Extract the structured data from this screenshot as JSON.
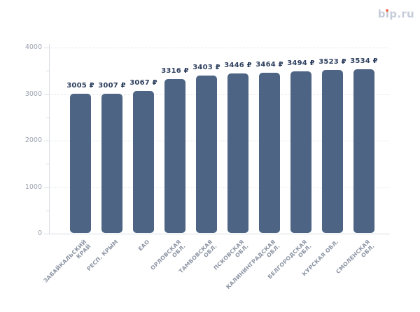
{
  "page": {
    "background": "#ffffff"
  },
  "logo": {
    "text": "bip.ru",
    "text_color": "#c7ccdb",
    "i_dot_color": "#f0715c"
  },
  "chart_data": {
    "type": "bar",
    "title": "",
    "xlabel": "",
    "ylabel": "",
    "currency_suffix": "₽",
    "categories": [
      {
        "label": "ЗАБАЙКАЛЬСКИЙ КРАЙ",
        "lines": [
          "ЗАБАЙКАЛЬСКИЙ",
          "КРАЙ"
        ]
      },
      {
        "label": "РЕСП. КРЫМ",
        "lines": [
          "РЕСП. КРЫМ"
        ]
      },
      {
        "label": "ЕАО",
        "lines": [
          "ЕАО"
        ]
      },
      {
        "label": "ОРЛОВСКАЯ ОБЛ.",
        "lines": [
          "ОРЛОВСКАЯ",
          "ОБЛ."
        ]
      },
      {
        "label": "ТАМБОВСКАЯ ОБЛ.",
        "lines": [
          "ТАМБОВСКАЯ",
          "ОБЛ."
        ]
      },
      {
        "label": "ПСКОВСКАЯ ОБЛ.",
        "lines": [
          "ПСКОВСКАЯ",
          "ОБЛ."
        ]
      },
      {
        "label": "КАЛИНИНГРАДСКАЯ ОБЛ.",
        "lines": [
          "КАЛИНИНГРАДСКАЯ",
          "ОБЛ."
        ]
      },
      {
        "label": "БЕЛГОРОДСКАЯ ОБЛ.",
        "lines": [
          "БЕЛГОРОДСКАЯ",
          "ОБЛ."
        ]
      },
      {
        "label": "КУРСКАЯ ОБЛ.",
        "lines": [
          "КУРСКАЯ ОБЛ."
        ]
      },
      {
        "label": "СМОЛЕНСКАЯ ОБЛ.",
        "lines": [
          "СМОЛЕНСКАЯ",
          "ОБЛ."
        ]
      }
    ],
    "values": [
      3005,
      3007,
      3067,
      3316,
      3403,
      3446,
      3464,
      3494,
      3523,
      3534
    ],
    "value_labels": [
      "3005 ₽",
      "3007 ₽",
      "3067 ₽",
      "3316 ₽",
      "3403 ₽",
      "3446 ₽",
      "3464 ₽",
      "3494 ₽",
      "3523 ₽",
      "3534 ₽"
    ],
    "ylim": [
      0,
      4000
    ],
    "yticks": [
      0,
      1000,
      2000,
      3000,
      4000
    ],
    "minor_tick_step": 500,
    "grid": {
      "horizontal": true,
      "style": "dotted",
      "vertical": false
    },
    "legend": "none",
    "bar_color": "#4d6484",
    "value_label_color": "#2d3f5e",
    "y_label_color": "#99a1af",
    "x_label_color": "#8d95a4",
    "axis_color": "#d9dce3"
  }
}
